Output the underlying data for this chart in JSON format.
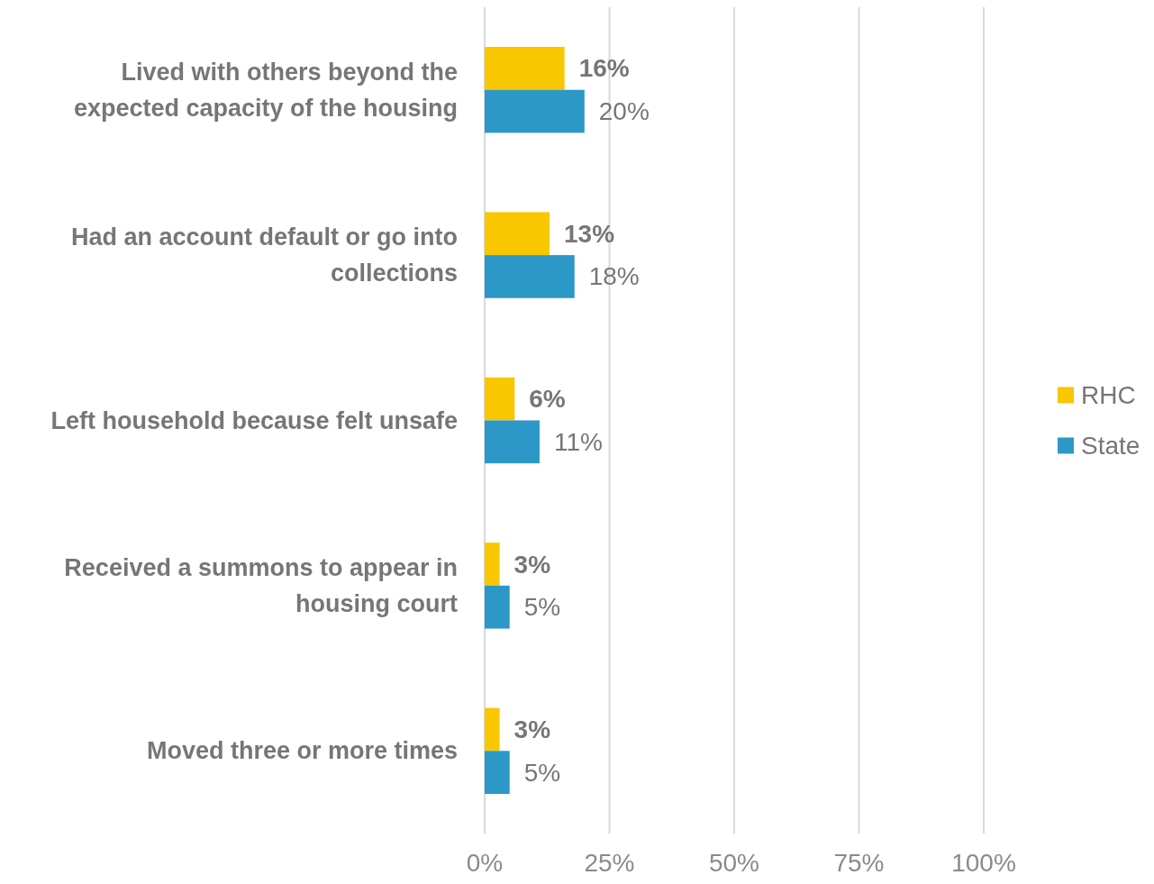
{
  "chart_data": {
    "type": "bar",
    "orientation": "horizontal",
    "categories": [
      "Lived with others beyond the expected capacity of the housing",
      "Had an account default or go into collections",
      "Left household because felt unsafe",
      "Received a summons to appear in housing court",
      "Moved three or more times"
    ],
    "series": [
      {
        "name": "RHC",
        "color": "#f8c700",
        "values": [
          16,
          13,
          6,
          3,
          3
        ],
        "value_labels": [
          "16%",
          "13%",
          "6%",
          "3%",
          "3%"
        ]
      },
      {
        "name": "State",
        "color": "#2b98c8",
        "values": [
          20,
          18,
          11,
          5,
          5
        ],
        "value_labels": [
          "20%",
          "18%",
          "11%",
          "5%",
          "5%"
        ]
      }
    ],
    "xlim": [
      0,
      100
    ],
    "xticks": [
      {
        "value": 0,
        "label": "0%"
      },
      {
        "value": 25,
        "label": "25%"
      },
      {
        "value": 50,
        "label": "50%"
      },
      {
        "value": 75,
        "label": "75%"
      },
      {
        "value": 100,
        "label": "100%"
      }
    ],
    "grid": "x",
    "legend": "right"
  }
}
